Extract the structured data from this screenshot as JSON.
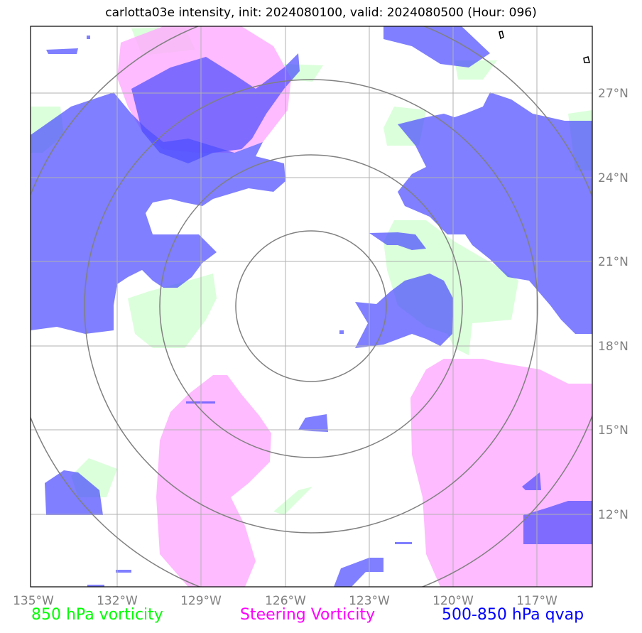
{
  "title": "carlotta03e intensity, init: 2024080100, valid: 2024080500 (Hour: 096)",
  "longitude_labels": [
    "135°W",
    "132°W",
    "129°W",
    "126°W",
    "123°W",
    "120°W",
    "117°W"
  ],
  "latitude_labels": [
    "27°N",
    "24°N",
    "21°N",
    "18°N",
    "15°N",
    "12°N"
  ],
  "legend": {
    "vorticity_850": "850 hPa vorticity",
    "steering_vorticity": "Steering Vorticity",
    "qvap": "500-850 hPa qvap"
  },
  "colors": {
    "vorticity_850": "#00ff00",
    "steering_vorticity": "#ff00ff",
    "qvap": "#0000ff",
    "range_rings": "#808080",
    "gridlines": "#b0b0b0"
  }
}
